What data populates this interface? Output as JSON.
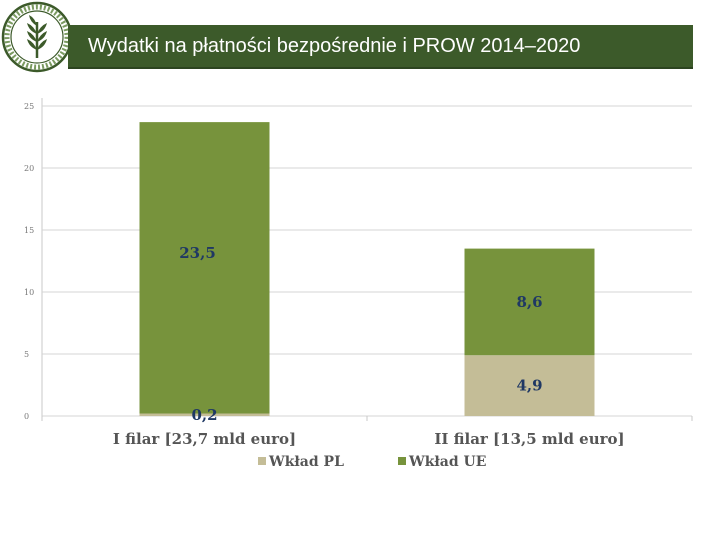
{
  "header": {
    "title": "Wydatki na płatności bezpośrednie i PROW 2014–2020"
  },
  "colors": {
    "title_bg": "#3c5a2a",
    "wklad_pl": "#c4bd97",
    "wklad_ue": "#77933c"
  },
  "chart_data": {
    "type": "bar",
    "stacked": true,
    "categories": [
      "I filar [23,7 mld euro]",
      "II filar [13,5 mld euro]"
    ],
    "series": [
      {
        "name": "Wkład PL",
        "values": [
          0.2,
          4.9
        ],
        "labels": [
          "0,2",
          "4,9"
        ],
        "color": "#c4bd97"
      },
      {
        "name": "Wkład UE",
        "values": [
          23.5,
          8.6
        ],
        "labels": [
          "23,5",
          "8,6"
        ],
        "color": "#77933c"
      }
    ],
    "yticks": [
      "0",
      "5",
      "10",
      "15",
      "20",
      "25"
    ],
    "ylim": [
      0,
      25
    ],
    "grid": true,
    "legend": "bottom"
  }
}
